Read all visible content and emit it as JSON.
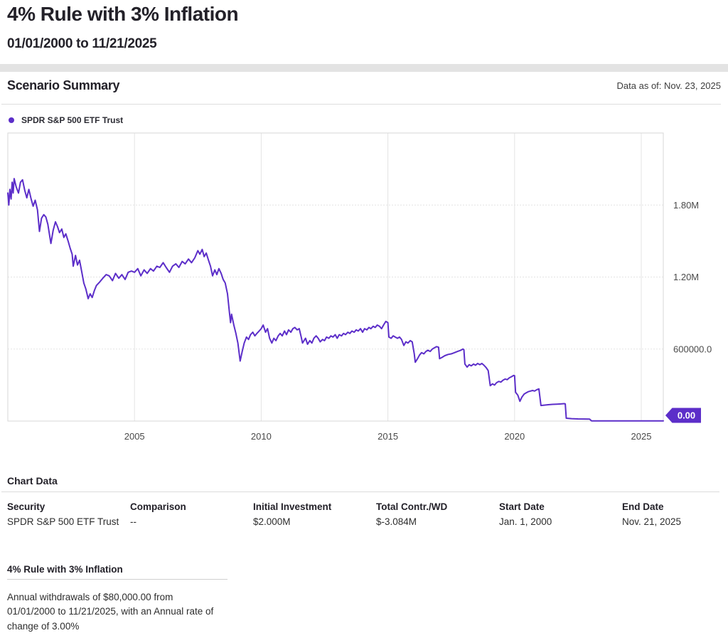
{
  "page": {
    "title": "4% Rule with 3% Inflation",
    "subtitle": "01/01/2000 to 11/21/2025"
  },
  "summary": {
    "heading": "Scenario Summary",
    "data_as_of": "Data as of: Nov. 23, 2025"
  },
  "legend": {
    "label": "SPDR S&P 500 ETF Trust",
    "color": "#5c2ec9"
  },
  "chart_data": {
    "type": "line",
    "title": "Scenario Summary",
    "xlabel": "",
    "ylabel": "",
    "xlim": [
      2000,
      2025.87
    ],
    "ylim": [
      0,
      2400000
    ],
    "grid": true,
    "legend_position": "top-left",
    "x_ticks": [
      2005,
      2010,
      2015,
      2020,
      2025
    ],
    "x_tick_labels": [
      "2005",
      "2010",
      "2015",
      "2020",
      "2025"
    ],
    "y_ticks": [
      {
        "value": 600000,
        "label": "600000.0"
      },
      {
        "value": 1200000,
        "label": "1.20M"
      },
      {
        "value": 1800000,
        "label": "1.80M"
      }
    ],
    "y_end_badge": "0.00",
    "series": [
      {
        "name": "SPDR S&P 500 ETF Trust",
        "color": "#5c2ec9",
        "points": [
          [
            2000.0,
            1900000
          ],
          [
            2000.04,
            1800000
          ],
          [
            2000.08,
            1930000
          ],
          [
            2000.13,
            1850000
          ],
          [
            2000.17,
            1990000
          ],
          [
            2000.21,
            1900000
          ],
          [
            2000.25,
            2020000
          ],
          [
            2000.33,
            1950000
          ],
          [
            2000.42,
            1900000
          ],
          [
            2000.5,
            1990000
          ],
          [
            2000.58,
            2010000
          ],
          [
            2000.67,
            1920000
          ],
          [
            2000.75,
            1860000
          ],
          [
            2000.83,
            1930000
          ],
          [
            2000.92,
            1850000
          ],
          [
            2001.0,
            1790000
          ],
          [
            2001.08,
            1840000
          ],
          [
            2001.17,
            1760000
          ],
          [
            2001.25,
            1580000
          ],
          [
            2001.33,
            1690000
          ],
          [
            2001.42,
            1720000
          ],
          [
            2001.5,
            1700000
          ],
          [
            2001.58,
            1640000
          ],
          [
            2001.7,
            1480000
          ],
          [
            2001.79,
            1590000
          ],
          [
            2001.88,
            1660000
          ],
          [
            2001.96,
            1620000
          ],
          [
            2002.04,
            1570000
          ],
          [
            2002.13,
            1600000
          ],
          [
            2002.21,
            1530000
          ],
          [
            2002.29,
            1560000
          ],
          [
            2002.38,
            1500000
          ],
          [
            2002.46,
            1440000
          ],
          [
            2002.54,
            1390000
          ],
          [
            2002.58,
            1290000
          ],
          [
            2002.67,
            1380000
          ],
          [
            2002.75,
            1300000
          ],
          [
            2002.83,
            1340000
          ],
          [
            2002.92,
            1240000
          ],
          [
            2003.0,
            1150000
          ],
          [
            2003.08,
            1100000
          ],
          [
            2003.17,
            1020000
          ],
          [
            2003.25,
            1060000
          ],
          [
            2003.33,
            1030000
          ],
          [
            2003.42,
            1090000
          ],
          [
            2003.5,
            1130000
          ],
          [
            2003.63,
            1160000
          ],
          [
            2003.75,
            1190000
          ],
          [
            2003.88,
            1220000
          ],
          [
            2004.0,
            1210000
          ],
          [
            2004.13,
            1170000
          ],
          [
            2004.25,
            1230000
          ],
          [
            2004.38,
            1190000
          ],
          [
            2004.5,
            1220000
          ],
          [
            2004.63,
            1180000
          ],
          [
            2004.75,
            1240000
          ],
          [
            2004.88,
            1250000
          ],
          [
            2005.0,
            1240000
          ],
          [
            2005.13,
            1270000
          ],
          [
            2005.25,
            1210000
          ],
          [
            2005.38,
            1260000
          ],
          [
            2005.5,
            1230000
          ],
          [
            2005.63,
            1270000
          ],
          [
            2005.75,
            1250000
          ],
          [
            2005.88,
            1290000
          ],
          [
            2006.0,
            1280000
          ],
          [
            2006.13,
            1320000
          ],
          [
            2006.25,
            1280000
          ],
          [
            2006.38,
            1240000
          ],
          [
            2006.5,
            1290000
          ],
          [
            2006.63,
            1310000
          ],
          [
            2006.75,
            1280000
          ],
          [
            2006.88,
            1330000
          ],
          [
            2007.0,
            1310000
          ],
          [
            2007.13,
            1350000
          ],
          [
            2007.25,
            1320000
          ],
          [
            2007.38,
            1360000
          ],
          [
            2007.5,
            1420000
          ],
          [
            2007.58,
            1390000
          ],
          [
            2007.67,
            1430000
          ],
          [
            2007.75,
            1370000
          ],
          [
            2007.83,
            1400000
          ],
          [
            2007.92,
            1340000
          ],
          [
            2008.0,
            1290000
          ],
          [
            2008.08,
            1210000
          ],
          [
            2008.17,
            1260000
          ],
          [
            2008.25,
            1220000
          ],
          [
            2008.33,
            1270000
          ],
          [
            2008.42,
            1230000
          ],
          [
            2008.5,
            1180000
          ],
          [
            2008.58,
            1150000
          ],
          [
            2008.67,
            1060000
          ],
          [
            2008.75,
            900000
          ],
          [
            2008.79,
            820000
          ],
          [
            2008.83,
            890000
          ],
          [
            2008.92,
            800000
          ],
          [
            2009.0,
            730000
          ],
          [
            2009.08,
            650000
          ],
          [
            2009.17,
            500000
          ],
          [
            2009.25,
            580000
          ],
          [
            2009.33,
            650000
          ],
          [
            2009.42,
            700000
          ],
          [
            2009.5,
            680000
          ],
          [
            2009.58,
            720000
          ],
          [
            2009.67,
            740000
          ],
          [
            2009.75,
            710000
          ],
          [
            2009.83,
            730000
          ],
          [
            2009.92,
            750000
          ],
          [
            2010.0,
            770000
          ],
          [
            2010.08,
            800000
          ],
          [
            2010.17,
            740000
          ],
          [
            2010.25,
            770000
          ],
          [
            2010.33,
            690000
          ],
          [
            2010.42,
            650000
          ],
          [
            2010.5,
            690000
          ],
          [
            2010.58,
            670000
          ],
          [
            2010.67,
            710000
          ],
          [
            2010.75,
            730000
          ],
          [
            2010.83,
            710000
          ],
          [
            2010.92,
            750000
          ],
          [
            2011.0,
            720000
          ],
          [
            2011.08,
            760000
          ],
          [
            2011.17,
            740000
          ],
          [
            2011.25,
            770000
          ],
          [
            2011.33,
            780000
          ],
          [
            2011.42,
            760000
          ],
          [
            2011.5,
            770000
          ],
          [
            2011.58,
            700000
          ],
          [
            2011.63,
            650000
          ],
          [
            2011.75,
            690000
          ],
          [
            2011.83,
            640000
          ],
          [
            2011.92,
            670000
          ],
          [
            2012.0,
            650000
          ],
          [
            2012.08,
            690000
          ],
          [
            2012.17,
            710000
          ],
          [
            2012.25,
            690000
          ],
          [
            2012.33,
            660000
          ],
          [
            2012.42,
            680000
          ],
          [
            2012.5,
            670000
          ],
          [
            2012.58,
            700000
          ],
          [
            2012.67,
            690000
          ],
          [
            2012.75,
            710000
          ],
          [
            2012.83,
            700000
          ],
          [
            2012.92,
            720000
          ],
          [
            2013.0,
            690000
          ],
          [
            2013.08,
            720000
          ],
          [
            2013.17,
            710000
          ],
          [
            2013.25,
            730000
          ],
          [
            2013.33,
            720000
          ],
          [
            2013.42,
            740000
          ],
          [
            2013.5,
            730000
          ],
          [
            2013.58,
            750000
          ],
          [
            2013.67,
            740000
          ],
          [
            2013.75,
            760000
          ],
          [
            2013.83,
            750000
          ],
          [
            2013.92,
            770000
          ],
          [
            2014.0,
            740000
          ],
          [
            2014.08,
            770000
          ],
          [
            2014.17,
            760000
          ],
          [
            2014.25,
            780000
          ],
          [
            2014.33,
            770000
          ],
          [
            2014.42,
            790000
          ],
          [
            2014.5,
            780000
          ],
          [
            2014.58,
            800000
          ],
          [
            2014.67,
            790000
          ],
          [
            2014.75,
            770000
          ],
          [
            2014.83,
            800000
          ],
          [
            2014.92,
            830000
          ],
          [
            2015.0,
            820000
          ],
          [
            2015.04,
            700000
          ],
          [
            2015.13,
            690000
          ],
          [
            2015.21,
            710000
          ],
          [
            2015.29,
            700000
          ],
          [
            2015.38,
            690000
          ],
          [
            2015.46,
            700000
          ],
          [
            2015.54,
            680000
          ],
          [
            2015.63,
            630000
          ],
          [
            2015.71,
            660000
          ],
          [
            2015.79,
            650000
          ],
          [
            2015.88,
            670000
          ],
          [
            2015.96,
            660000
          ],
          [
            2016.04,
            560000
          ],
          [
            2016.08,
            490000
          ],
          [
            2016.17,
            520000
          ],
          [
            2016.25,
            550000
          ],
          [
            2016.33,
            570000
          ],
          [
            2016.42,
            560000
          ],
          [
            2016.5,
            580000
          ],
          [
            2016.58,
            590000
          ],
          [
            2016.67,
            580000
          ],
          [
            2016.75,
            600000
          ],
          [
            2016.83,
            610000
          ],
          [
            2016.92,
            620000
          ],
          [
            2017.0,
            615000
          ],
          [
            2017.04,
            520000
          ],
          [
            2017.13,
            530000
          ],
          [
            2017.25,
            545000
          ],
          [
            2017.38,
            555000
          ],
          [
            2017.5,
            560000
          ],
          [
            2017.63,
            570000
          ],
          [
            2017.75,
            580000
          ],
          [
            2017.88,
            590000
          ],
          [
            2017.96,
            600000
          ],
          [
            2018.0,
            595000
          ],
          [
            2018.04,
            475000
          ],
          [
            2018.13,
            450000
          ],
          [
            2018.21,
            470000
          ],
          [
            2018.29,
            460000
          ],
          [
            2018.38,
            475000
          ],
          [
            2018.46,
            465000
          ],
          [
            2018.54,
            480000
          ],
          [
            2018.63,
            470000
          ],
          [
            2018.71,
            480000
          ],
          [
            2018.79,
            465000
          ],
          [
            2018.88,
            445000
          ],
          [
            2018.96,
            420000
          ],
          [
            2019.04,
            295000
          ],
          [
            2019.13,
            310000
          ],
          [
            2019.21,
            300000
          ],
          [
            2019.29,
            320000
          ],
          [
            2019.38,
            330000
          ],
          [
            2019.46,
            325000
          ],
          [
            2019.54,
            340000
          ],
          [
            2019.63,
            350000
          ],
          [
            2019.71,
            345000
          ],
          [
            2019.79,
            360000
          ],
          [
            2019.88,
            370000
          ],
          [
            2019.96,
            380000
          ],
          [
            2020.0,
            378000
          ],
          [
            2020.04,
            240000
          ],
          [
            2020.13,
            215000
          ],
          [
            2020.21,
            165000
          ],
          [
            2020.29,
            200000
          ],
          [
            2020.38,
            225000
          ],
          [
            2020.46,
            235000
          ],
          [
            2020.54,
            245000
          ],
          [
            2020.63,
            250000
          ],
          [
            2020.71,
            255000
          ],
          [
            2020.79,
            250000
          ],
          [
            2020.88,
            262000
          ],
          [
            2020.96,
            268000
          ],
          [
            2021.04,
            130000
          ],
          [
            2021.17,
            133000
          ],
          [
            2021.33,
            136000
          ],
          [
            2021.5,
            139000
          ],
          [
            2021.67,
            141000
          ],
          [
            2021.83,
            143000
          ],
          [
            2021.96,
            145000
          ],
          [
            2022.0,
            143000
          ],
          [
            2022.04,
            24000
          ],
          [
            2022.25,
            20000
          ],
          [
            2022.5,
            18000
          ],
          [
            2022.75,
            17000
          ],
          [
            2022.96,
            16000
          ],
          [
            2023.04,
            2000
          ],
          [
            2023.5,
            1000
          ],
          [
            2024.0,
            1000
          ],
          [
            2024.5,
            1000
          ],
          [
            2025.0,
            1000
          ],
          [
            2025.5,
            1000
          ],
          [
            2025.87,
            1000
          ]
        ]
      }
    ]
  },
  "table": {
    "heading": "Chart Data",
    "columns": [
      {
        "header": "Security",
        "value": "SPDR S&P 500 ETF Trust"
      },
      {
        "header": "Comparison",
        "value": "--"
      },
      {
        "header": "Initial Investment",
        "value": "$2.000M"
      },
      {
        "header": "Total Contr./WD",
        "value": "$-3.084M"
      },
      {
        "header": "Start Date",
        "value": "Jan. 1, 2000"
      },
      {
        "header": "End Date",
        "value": "Nov. 21, 2025"
      }
    ]
  },
  "scenario": {
    "heading": "4% Rule with 3% Inflation",
    "description": "Annual withdrawals of $80,000.00 from 01/01/2000 to 11/21/2025, with an Annual rate of change of 3.00%"
  }
}
